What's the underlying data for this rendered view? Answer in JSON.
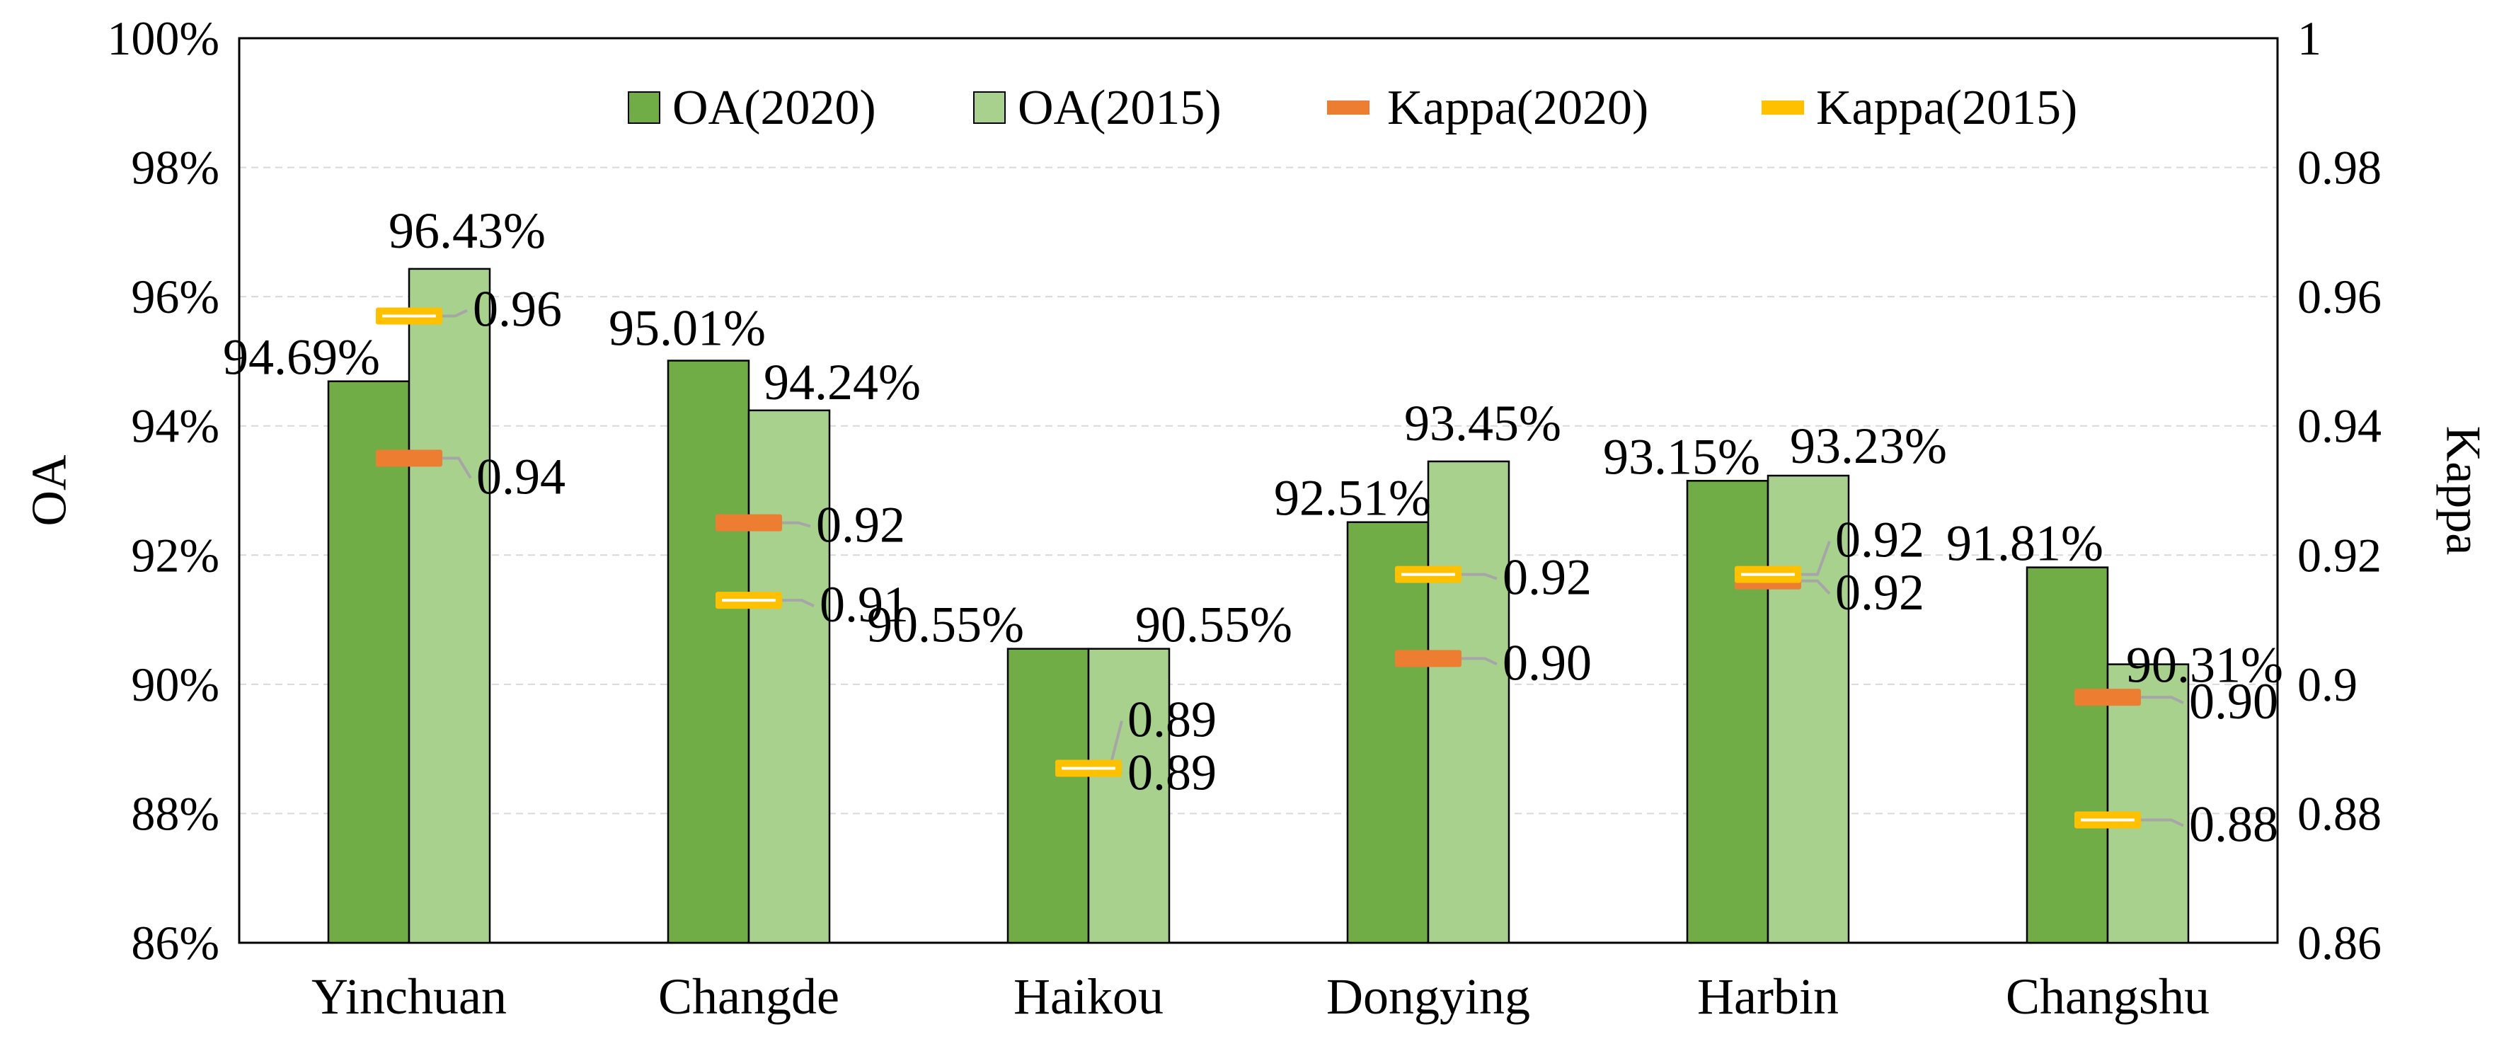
{
  "chart_data": {
    "type": "bar",
    "categories": [
      "Yinchuan",
      "Changde",
      "Haikou",
      "Dongying",
      "Harbin",
      "Changshu"
    ],
    "series": [
      {
        "name": "OA(2020)",
        "axis": "left",
        "kind": "bar",
        "color": "#70ad47",
        "values": [
          94.69,
          95.01,
          90.55,
          92.51,
          93.15,
          91.81
        ],
        "labels": [
          "94.69%",
          "95.01%",
          "90.55%",
          "92.51%",
          "93.15%",
          "91.81%"
        ]
      },
      {
        "name": "OA(2015)",
        "axis": "left",
        "kind": "bar",
        "color": "#a9d18e",
        "values": [
          96.43,
          94.24,
          90.55,
          93.45,
          93.23,
          90.31
        ],
        "labels": [
          "96.43%",
          "94.24%",
          "90.55%",
          "93.45%",
          "93.23%",
          "90.31%"
        ]
      },
      {
        "name": "Kappa(2020)",
        "axis": "right",
        "kind": "marker",
        "color": "#ed7d31",
        "values": [
          0.935,
          0.925,
          0.887,
          0.904,
          0.916,
          0.898
        ],
        "labels": [
          "0.94",
          "0.92",
          "0.89",
          "0.90",
          "0.92",
          "0.90"
        ]
      },
      {
        "name": "Kappa(2015)",
        "axis": "right",
        "kind": "marker",
        "color": "#ffc000",
        "values": [
          0.957,
          0.913,
          0.887,
          0.917,
          0.917,
          0.879
        ],
        "labels": [
          "0.96",
          "0.91",
          "0.89",
          "0.92",
          "0.92",
          "0.88"
        ]
      }
    ],
    "left_axis": {
      "title": "OA",
      "min": 86,
      "max": 100,
      "step": 2,
      "tick_labels": [
        "86%",
        "88%",
        "90%",
        "92%",
        "94%",
        "96%",
        "98%",
        "100%"
      ]
    },
    "right_axis": {
      "title": "Kappa",
      "min": 0.86,
      "max": 1,
      "step": 0.02,
      "tick_labels": [
        "0.86",
        "0.88",
        "0.9",
        "0.92",
        "0.94",
        "0.96",
        "0.98",
        "1"
      ]
    },
    "legend": {
      "placement": "top-center",
      "entries": [
        "OA(2020)",
        "OA(2015)",
        "Kappa(2020)",
        "Kappa(2015)"
      ]
    },
    "grid": true
  }
}
